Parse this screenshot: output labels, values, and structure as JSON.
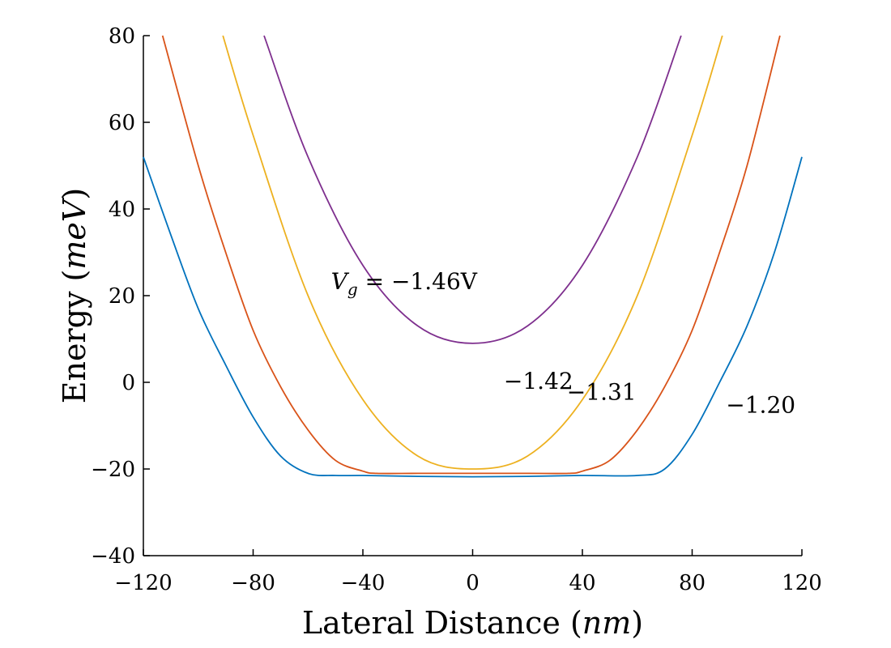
{
  "chart_data": {
    "type": "line",
    "title": "",
    "xlabel": "Lateral Distance (nm)",
    "ylabel": "Energy (meV)",
    "xlim": [
      -120,
      120
    ],
    "ylim": [
      -40,
      80
    ],
    "xticks": [
      "−120",
      "−80",
      "−40",
      "0",
      "40",
      "80",
      "120"
    ],
    "yticks": [
      "−40",
      "−20",
      "0",
      "20",
      "40",
      "60",
      "80"
    ],
    "grid": false,
    "legend": "none",
    "series": [
      {
        "color": "#0072BD",
        "x": [
          -120,
          -110,
          -100,
          -90,
          -80,
          -70,
          -60,
          -50,
          -40,
          -20,
          0,
          20,
          40,
          60,
          70,
          80,
          90,
          100,
          110,
          120
        ],
        "y": [
          52,
          34,
          17,
          4,
          -8,
          -17,
          -21,
          -21.5,
          -21.5,
          -21.7,
          -21.8,
          -21.7,
          -21.5,
          -21.5,
          -20,
          -12,
          0,
          13,
          30,
          52
        ]
      },
      {
        "color": "#D95319",
        "x": [
          -113,
          -100,
          -90,
          -80,
          -70,
          -60,
          -50,
          -40,
          -35,
          -20,
          0,
          20,
          35,
          40,
          50,
          60,
          70,
          80,
          90,
          100,
          112
        ],
        "y": [
          80,
          50,
          30,
          12,
          -1,
          -11,
          -18,
          -20.5,
          -21,
          -21,
          -21,
          -21,
          -21,
          -20.5,
          -18,
          -11,
          -1,
          12,
          30,
          50,
          80
        ]
      },
      {
        "color": "#EDB120",
        "x": [
          -91,
          -80,
          -60,
          -40,
          -20,
          0,
          20,
          40,
          60,
          80,
          91
        ],
        "y": [
          80,
          57,
          20,
          -4,
          -17,
          -20,
          -17,
          -4,
          20,
          57,
          80
        ]
      },
      {
        "color": "#7E2F8E",
        "x": [
          -76,
          -60,
          -40,
          -20,
          0,
          20,
          40,
          60,
          76
        ],
        "y": [
          80,
          52,
          27,
          13,
          9,
          13,
          27,
          52,
          80
        ]
      }
    ],
    "annotations": [
      {
        "text": "V_g = −1.46V",
        "x": -25,
        "y": 21.5
      },
      {
        "text": "−1.42",
        "x": 24,
        "y": -1.5
      },
      {
        "text": "−1.31",
        "x": 47,
        "y": -4
      },
      {
        "text": "−1.20",
        "x": 105,
        "y": -7
      }
    ]
  }
}
